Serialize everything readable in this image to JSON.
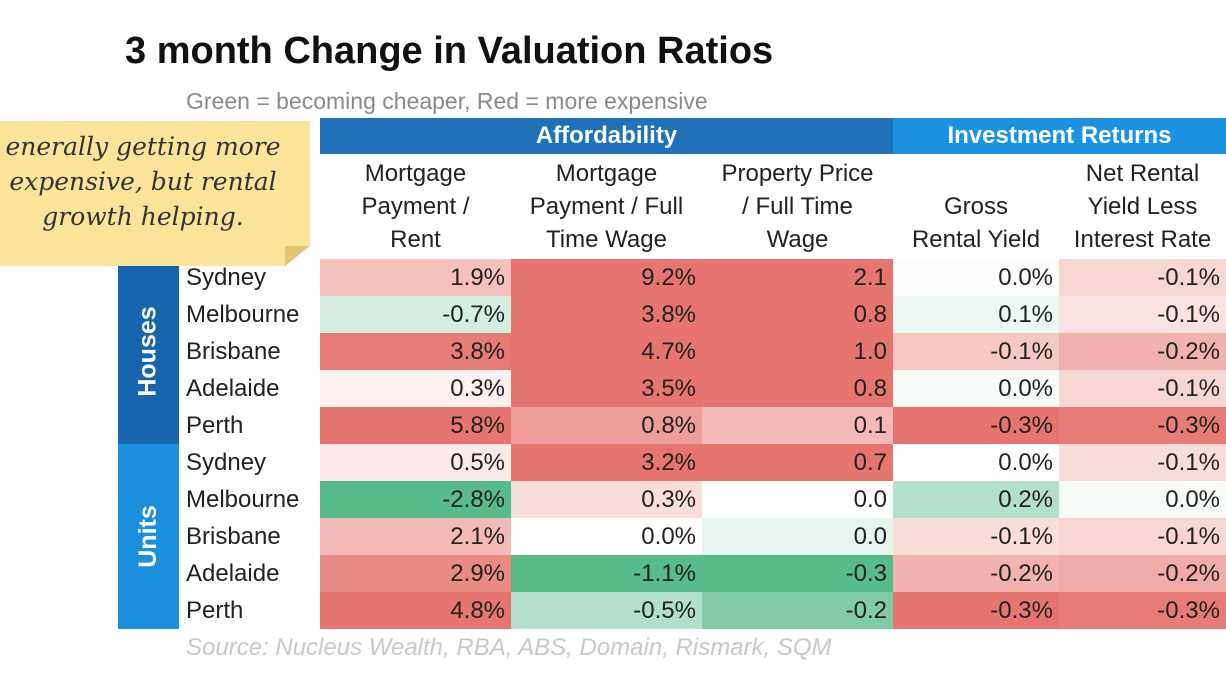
{
  "title": "3 month Change in Valuation Ratios",
  "subtitle": "Green = becoming cheaper, Red = more expensive",
  "source": "Source: Nucleus Wealth, RBA, ABS, Domain, Rismark, SQM",
  "note": "enerally getting more\nexpensive, but rental\ngrowth helping.",
  "colors": {
    "group_affordability": "#1f72b8",
    "group_investment": "#1b93e0",
    "side_houses": "#1766ad",
    "side_units": "#1b8fdc",
    "red_strong": "#e6756f",
    "green_strong": "#57bb8a",
    "neutral": "#ffffff"
  },
  "chart_data": {
    "type": "table",
    "groups": [
      {
        "name": "Affordability",
        "columns": [
          0,
          1,
          2
        ]
      },
      {
        "name": "Investment Returns",
        "columns": [
          3,
          4
        ]
      }
    ],
    "columns": [
      "Mortgage\nPayment /\nRent",
      "Mortgage\nPayment / Full\nTime Wage",
      "Property Price\n/ Full Time\nWage",
      "Gross\nRental Yield",
      "Net Rental\nYield Less\nInterest Rate"
    ],
    "sections": [
      {
        "name": "Houses",
        "rows": [
          {
            "city": "Sydney",
            "values": [
              "1.9%",
              "9.2%",
              "2.1",
              "0.0%",
              "-0.1%"
            ],
            "tone": [
              0.45,
              1.0,
              1.0,
              0.03,
              0.3
            ]
          },
          {
            "city": "Melbourne",
            "values": [
              "-0.7%",
              "3.8%",
              "0.8",
              "0.1%",
              "-0.1%"
            ],
            "tone": [
              -0.25,
              1.0,
              1.0,
              -0.1,
              0.2
            ]
          },
          {
            "city": "Brisbane",
            "values": [
              "3.8%",
              "4.7%",
              "1.0",
              "-0.1%",
              "-0.2%"
            ],
            "tone": [
              0.95,
              1.0,
              1.0,
              0.4,
              0.55
            ]
          },
          {
            "city": "Adelaide",
            "values": [
              "0.3%",
              "3.5%",
              "0.8",
              "0.0%",
              "-0.1%"
            ],
            "tone": [
              0.1,
              1.0,
              1.0,
              -0.05,
              0.3
            ]
          },
          {
            "city": "Perth",
            "values": [
              "5.8%",
              "0.8%",
              "0.1",
              "-0.3%",
              "-0.3%"
            ],
            "tone": [
              1.0,
              0.7,
              0.5,
              1.0,
              0.95
            ]
          }
        ]
      },
      {
        "name": "Units",
        "rows": [
          {
            "city": "Sydney",
            "values": [
              "0.5%",
              "3.2%",
              "0.7",
              "0.0%",
              "-0.1%"
            ],
            "tone": [
              0.15,
              1.0,
              1.0,
              0.0,
              0.25
            ]
          },
          {
            "city": "Melbourne",
            "values": [
              "-2.8%",
              "0.3%",
              "0.0",
              "0.2%",
              "0.0%"
            ],
            "tone": [
              -1.0,
              0.25,
              0.0,
              -0.45,
              -0.05
            ]
          },
          {
            "city": "Brisbane",
            "values": [
              "2.1%",
              "0.0%",
              "0.0",
              "-0.1%",
              "-0.1%"
            ],
            "tone": [
              0.5,
              0.0,
              -0.15,
              0.25,
              0.3
            ]
          },
          {
            "city": "Adelaide",
            "values": [
              "2.9%",
              "-1.1%",
              "-0.3",
              "-0.2%",
              "-0.2%"
            ],
            "tone": [
              0.85,
              -1.0,
              -1.0,
              0.55,
              0.6
            ]
          },
          {
            "city": "Perth",
            "values": [
              "4.8%",
              "-0.5%",
              "-0.2",
              "-0.3%",
              "-0.3%"
            ],
            "tone": [
              1.0,
              -0.45,
              -0.75,
              1.0,
              0.95
            ]
          }
        ]
      }
    ]
  }
}
